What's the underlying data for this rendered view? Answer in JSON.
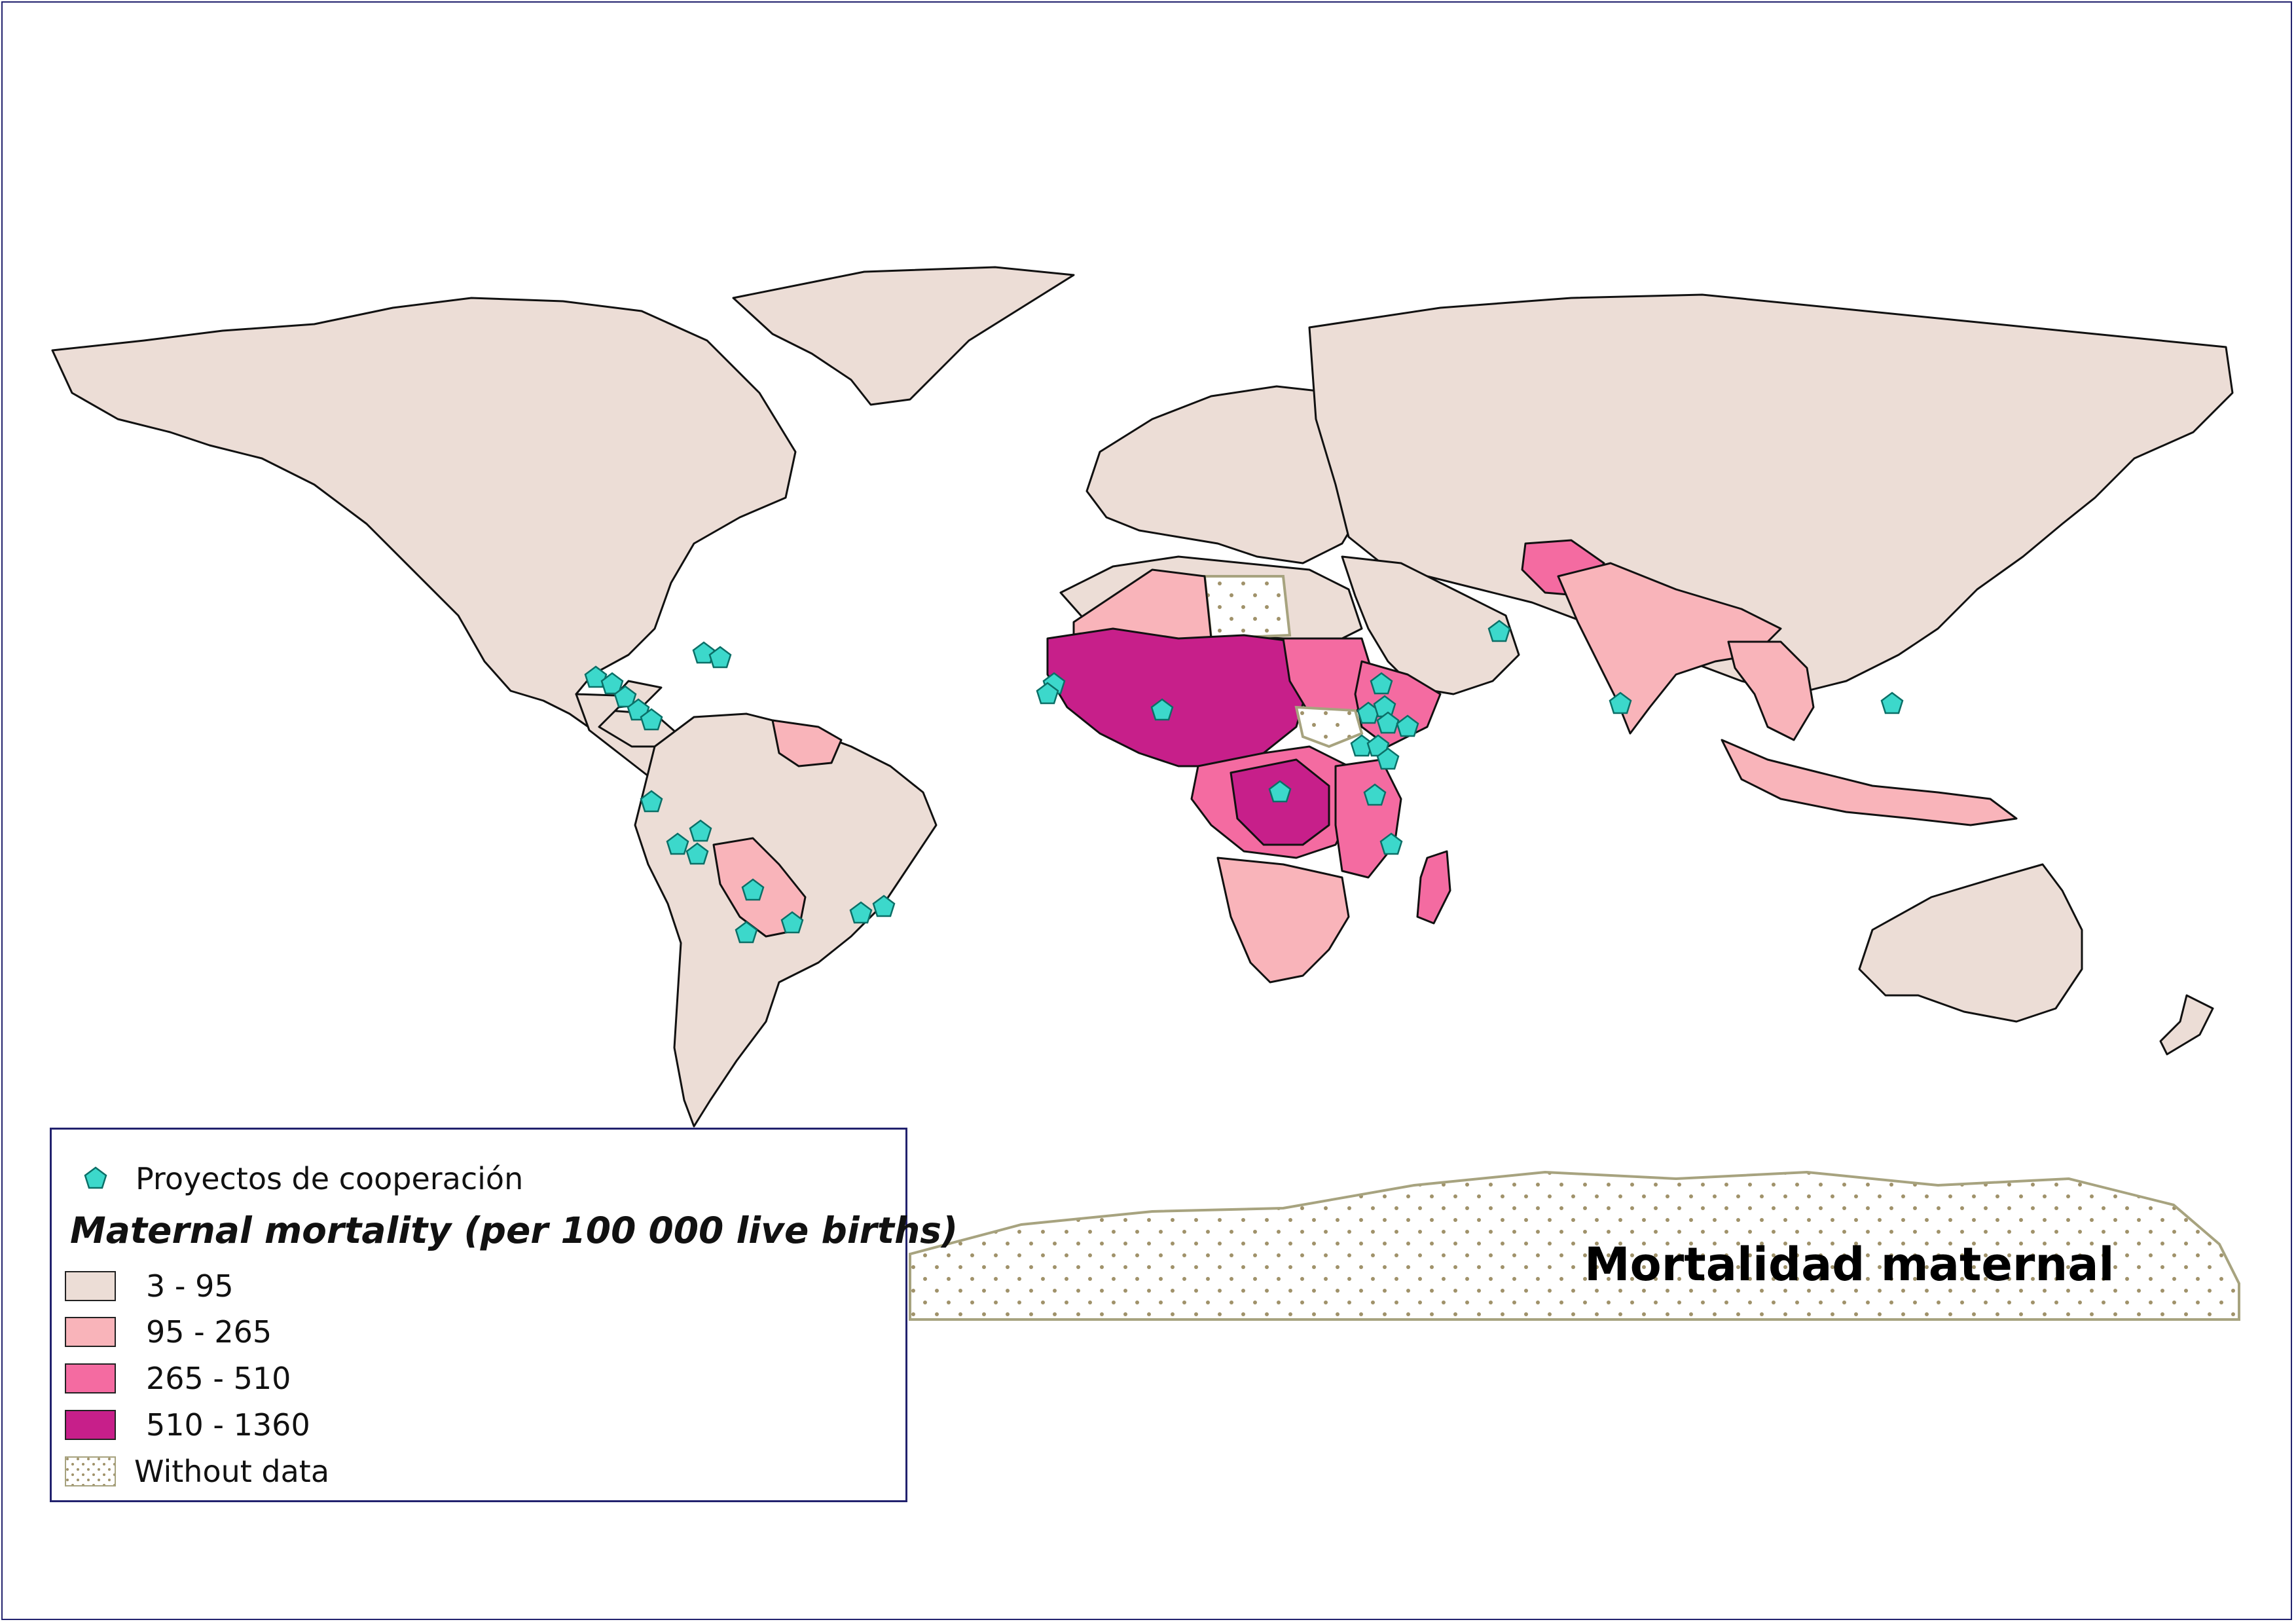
{
  "map_title": "Mortalidad maternal",
  "legend": {
    "points_label": "Proyectos de cooperación",
    "title": "Maternal mortality (per 100 000 live births)",
    "classes": [
      {
        "label": "3 - 95",
        "color": "#ecddd6"
      },
      {
        "label": "95 - 265",
        "color": "#f9b4ba"
      },
      {
        "label": "265 - 510",
        "color": "#f46ba1"
      },
      {
        "label": "510 - 1360",
        "color": "#c71f8a"
      },
      {
        "label": "Without data",
        "color": "dotted"
      }
    ]
  },
  "icons": {
    "project_marker": "pentagon-icon",
    "marker_color": "#3cd8cb"
  }
}
